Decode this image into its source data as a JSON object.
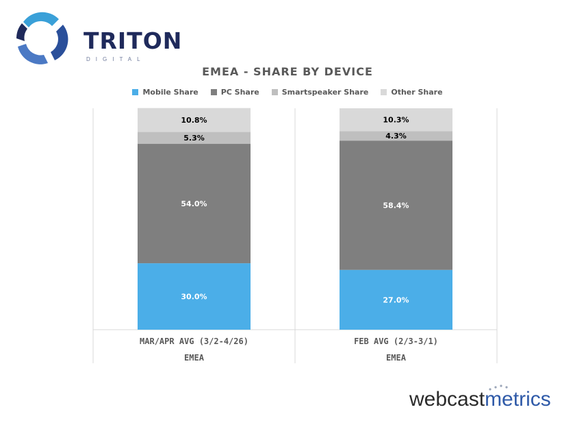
{
  "brand": {
    "name": "TRITON",
    "sub": "DIGITAL"
  },
  "watermark": {
    "part1": "webcast",
    "part2": "metrics"
  },
  "colors": {
    "mobile": "#4baee8",
    "pc": "#7f7f7f",
    "smartspeaker": "#bfbfbf",
    "other": "#d9d9d9",
    "grid": "#d9d9d9"
  },
  "chart_data": {
    "type": "bar",
    "stacked": true,
    "title": "EMEA - SHARE BY DEVICE",
    "categories": [
      "MAR/APR AVG (3/2-4/26)",
      "FEB AVG (2/3-3/1)"
    ],
    "group_labels": [
      "EMEA",
      "EMEA"
    ],
    "series": [
      {
        "name": "Mobile Share",
        "values": [
          30.0,
          27.0
        ],
        "labels": [
          "30.0%",
          "27.0%"
        ],
        "label_color": "#ffffff"
      },
      {
        "name": "PC Share",
        "values": [
          54.0,
          58.4
        ],
        "labels": [
          "54.0%",
          "58.4%"
        ],
        "label_color": "#ffffff"
      },
      {
        "name": "Smartspeaker Share",
        "values": [
          5.3,
          4.3
        ],
        "labels": [
          "5.3%",
          "4.3%"
        ],
        "label_color": "#000000"
      },
      {
        "name": "Other Share",
        "values": [
          10.8,
          10.3
        ],
        "labels": [
          "10.8%",
          "10.3%"
        ],
        "label_color": "#000000"
      }
    ],
    "ylim": [
      0,
      100
    ],
    "legend_position": "top",
    "grid": false
  }
}
